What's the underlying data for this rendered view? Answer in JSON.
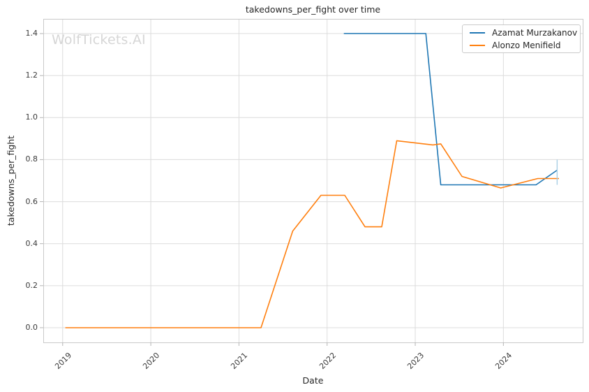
{
  "watermark": "WolfTickets.AI",
  "chart_data": {
    "type": "line",
    "title": "takedowns_per_fight over time",
    "xlabel": "Date",
    "ylabel": "takedowns_per_fight",
    "xlim": [
      2018.78,
      2024.9
    ],
    "ylim": [
      -0.07,
      1.47
    ],
    "x_ticks": [
      2019,
      2020,
      2021,
      2022,
      2023,
      2024
    ],
    "x_tick_labels": [
      "2019",
      "2020",
      "2021",
      "2022",
      "2023",
      "2024"
    ],
    "y_ticks": [
      0.0,
      0.2,
      0.4,
      0.6,
      0.8,
      1.0,
      1.2,
      1.4
    ],
    "y_tick_labels": [
      "0.0",
      "0.2",
      "0.4",
      "0.6",
      "0.8",
      "1.0",
      "1.2",
      "1.4"
    ],
    "grid": true,
    "legend_position": "upper-right",
    "series": [
      {
        "name": "Azamat Murzakanov",
        "color": "#1f77b4",
        "x": [
          2022.19,
          2022.55,
          2023.12,
          2023.29,
          2023.8,
          2024.37,
          2024.61
        ],
        "y": [
          1.4,
          1.4,
          1.4,
          0.68,
          0.68,
          0.68,
          0.75
        ]
      },
      {
        "name": "Alonzo Menifield",
        "color": "#ff7f0e",
        "x": [
          2019.03,
          2019.5,
          2020.0,
          2020.5,
          2021.0,
          2021.25,
          2021.61,
          2021.93,
          2022.2,
          2022.43,
          2022.62,
          2022.79,
          2023.2,
          2023.29,
          2023.53,
          2023.97,
          2024.39,
          2024.63
        ],
        "y": [
          0.0,
          0.0,
          0.0,
          0.0,
          0.0,
          0.0,
          0.46,
          0.63,
          0.63,
          0.48,
          0.48,
          0.89,
          0.87,
          0.875,
          0.72,
          0.665,
          0.71,
          0.71
        ]
      }
    ],
    "annotations": [
      {
        "type": "vline",
        "name": "latest-value-marker",
        "x": 2024.61,
        "y_from": 0.68,
        "y_to": 0.8,
        "color": "#a9cfe5"
      }
    ]
  },
  "colors": {
    "grid": "#dcdcdc",
    "spine": "#c9c9c9",
    "tick": "#b5b5b5",
    "series_blue": "#1f77b4",
    "series_orange": "#ff7f0e",
    "watermark": "#d6d6d6"
  }
}
